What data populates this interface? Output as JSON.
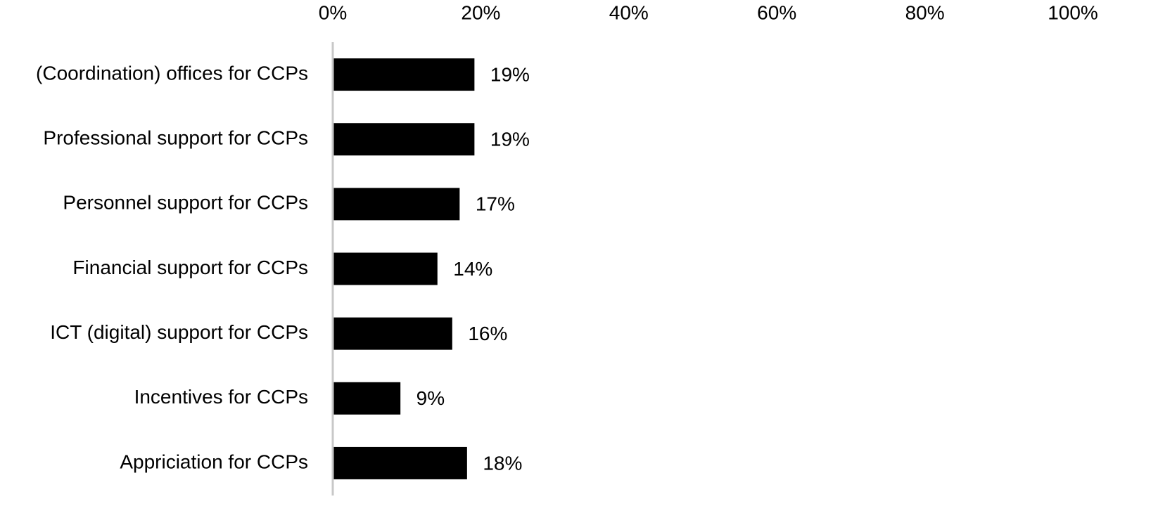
{
  "chart_data": {
    "type": "bar",
    "orientation": "horizontal",
    "categories": [
      "(Coordination) offices for CCPs",
      "Professional support for CCPs",
      "Personnel support for CCPs",
      "Financial support for CCPs",
      "ICT (digital) support for CCPs",
      "Incentives for CCPs",
      "Appriciation for CCPs"
    ],
    "values": [
      19,
      19,
      17,
      14,
      16,
      9,
      18
    ],
    "value_labels": [
      "19%",
      "19%",
      "17%",
      "14%",
      "16%",
      "9%",
      "18%"
    ],
    "color": "#000000",
    "xlim": [
      0,
      100
    ],
    "xticks": [
      {
        "value": 0,
        "label": "0%"
      },
      {
        "value": 20,
        "label": "20%"
      },
      {
        "value": 40,
        "label": "40%"
      },
      {
        "value": 60,
        "label": "60%"
      },
      {
        "value": 80,
        "label": "80%"
      },
      {
        "value": 100,
        "label": "100%"
      }
    ],
    "grid": false
  }
}
